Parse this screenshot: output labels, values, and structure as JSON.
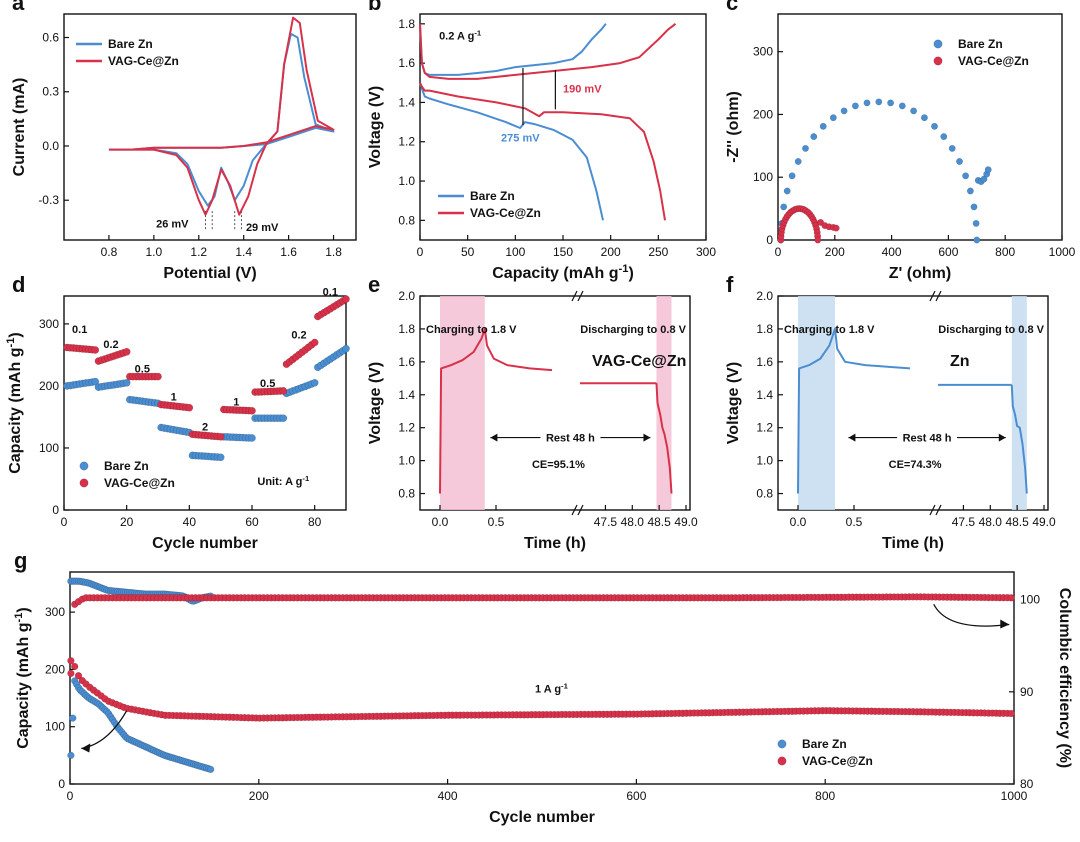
{
  "colors": {
    "bare": "#4a8ed1",
    "vag": "#d8314a",
    "pink": "#f4bfd3",
    "blue": "#c4dcf0"
  },
  "chart_data": [
    {
      "id": "a",
      "type": "line",
      "panel_label": "a",
      "xlabel": "Potential (V)",
      "ylabel": "Current (mA)",
      "xlim": [
        0.6,
        1.9
      ],
      "ylim": [
        -0.52,
        0.73
      ],
      "xticks": [
        "0.8",
        "1.0",
        "1.2",
        "1.4",
        "1.6",
        "1.8"
      ],
      "yticks": [
        "-0.3",
        "0.0",
        "0.3",
        "0.6"
      ],
      "series": [
        {
          "name": "Bare Zn",
          "color_key": "bare",
          "x": [
            0.8,
            0.9,
            1.0,
            1.1,
            1.15,
            1.2,
            1.24,
            1.27,
            1.3,
            1.33,
            1.36,
            1.4,
            1.44,
            1.5,
            1.55,
            1.58,
            1.61,
            1.64,
            1.67,
            1.72,
            1.8,
            1.72,
            1.6,
            1.5,
            1.4,
            1.3,
            1.2,
            1.1,
            1.0,
            0.9,
            0.8
          ],
          "y": [
            -0.02,
            -0.02,
            -0.02,
            -0.04,
            -0.1,
            -0.25,
            -0.33,
            -0.28,
            -0.12,
            -0.2,
            -0.3,
            -0.22,
            -0.08,
            0.01,
            0.08,
            0.45,
            0.62,
            0.6,
            0.38,
            0.12,
            0.08,
            0.1,
            0.05,
            0.01,
            0.0,
            -0.01,
            -0.01,
            -0.01,
            -0.01,
            -0.02,
            -0.02
          ]
        },
        {
          "name": "VAG-Ce@Zn",
          "color_key": "vag",
          "x": [
            0.8,
            0.9,
            1.0,
            1.1,
            1.15,
            1.2,
            1.23,
            1.26,
            1.3,
            1.34,
            1.38,
            1.42,
            1.46,
            1.5,
            1.55,
            1.58,
            1.62,
            1.65,
            1.68,
            1.73,
            1.8,
            1.72,
            1.6,
            1.5,
            1.4,
            1.3,
            1.2,
            1.1,
            1.0,
            0.9,
            0.8
          ],
          "y": [
            -0.02,
            -0.02,
            -0.02,
            -0.05,
            -0.12,
            -0.3,
            -0.38,
            -0.3,
            -0.13,
            -0.22,
            -0.38,
            -0.28,
            -0.1,
            0.01,
            0.08,
            0.45,
            0.71,
            0.68,
            0.42,
            0.14,
            0.09,
            0.11,
            0.06,
            0.02,
            0.0,
            -0.01,
            -0.01,
            -0.01,
            -0.01,
            -0.02,
            -0.02
          ]
        }
      ],
      "legend": [
        "Bare Zn",
        "VAG-Ce@Zn"
      ],
      "annotations": [
        "26 mV",
        "29 mV"
      ]
    },
    {
      "id": "b",
      "type": "line",
      "panel_label": "b",
      "xlabel": "Capacity (mAh g-1)",
      "ylabel": "Voltage (V)",
      "xlim": [
        0,
        300
      ],
      "ylim": [
        0.7,
        1.85
      ],
      "xticks": [
        "0",
        "50",
        "100",
        "150",
        "200",
        "250",
        "300"
      ],
      "yticks": [
        "0.8",
        "1.0",
        "1.2",
        "1.4",
        "1.6",
        "1.8"
      ],
      "series": [
        {
          "name": "Bare Zn charge",
          "color_key": "bare",
          "x": [
            0,
            2,
            5,
            10,
            20,
            40,
            60,
            80,
            100,
            120,
            140,
            160,
            170,
            180,
            190,
            195
          ],
          "y": [
            1.8,
            1.6,
            1.55,
            1.54,
            1.54,
            1.54,
            1.55,
            1.56,
            1.58,
            1.59,
            1.6,
            1.62,
            1.66,
            1.72,
            1.77,
            1.8
          ]
        },
        {
          "name": "Bare Zn discharge",
          "color_key": "bare",
          "x": [
            0,
            2,
            5,
            10,
            30,
            60,
            90,
            105,
            110,
            120,
            140,
            160,
            175,
            185,
            192
          ],
          "y": [
            1.5,
            1.47,
            1.43,
            1.42,
            1.39,
            1.35,
            1.3,
            1.27,
            1.3,
            1.29,
            1.26,
            1.21,
            1.12,
            0.95,
            0.8
          ]
        },
        {
          "name": "VAG-Ce@Zn charge",
          "color_key": "vag",
          "x": [
            0,
            2,
            5,
            10,
            30,
            60,
            100,
            140,
            180,
            210,
            230,
            250,
            260,
            268
          ],
          "y": [
            1.8,
            1.6,
            1.55,
            1.53,
            1.52,
            1.52,
            1.54,
            1.56,
            1.58,
            1.6,
            1.63,
            1.72,
            1.77,
            1.8
          ]
        },
        {
          "name": "VAG-Ce@Zn discharge",
          "color_key": "vag",
          "x": [
            0,
            2,
            5,
            10,
            40,
            80,
            110,
            125,
            130,
            150,
            190,
            220,
            235,
            245,
            252,
            257
          ],
          "y": [
            1.5,
            1.48,
            1.46,
            1.46,
            1.43,
            1.4,
            1.37,
            1.33,
            1.35,
            1.35,
            1.34,
            1.32,
            1.25,
            1.1,
            0.95,
            0.8
          ]
        }
      ],
      "legend": [
        "Bare Zn",
        "VAG-Ce@Zn"
      ],
      "annotations": [
        "0.2 A g-1",
        "190 mV",
        "275 mV"
      ]
    },
    {
      "id": "c",
      "type": "scatter",
      "panel_label": "c",
      "xlabel": "Z' (ohm)",
      "ylabel": "-Z'' (ohm)",
      "xlim": [
        0,
        1000
      ],
      "ylim": [
        0,
        360
      ],
      "xticks": [
        "0",
        "200",
        "400",
        "600",
        "800",
        "1000"
      ],
      "yticks": [
        "0",
        "100",
        "200",
        "300"
      ],
      "series": [
        {
          "name": "Bare Zn",
          "color_key": "bare",
          "shape": "semicircle",
          "x_start": 10,
          "x_end": 700,
          "y_peak": 220,
          "tail": [
            [
              705,
              95
            ],
            [
              715,
              93
            ],
            [
              725,
              97
            ],
            [
              735,
              105
            ],
            [
              740,
              112
            ]
          ]
        },
        {
          "name": "VAG-Ce@Zn",
          "color_key": "vag",
          "shape": "semicircle",
          "x_start": 10,
          "x_end": 140,
          "y_peak": 50,
          "tail": [
            [
              150,
              28
            ],
            [
              165,
              23
            ],
            [
              180,
              21
            ],
            [
              195,
              20
            ],
            [
              205,
              19
            ]
          ]
        }
      ],
      "legend": [
        "Bare Zn",
        "VAG-Ce@Zn"
      ]
    },
    {
      "id": "d",
      "type": "scatter",
      "panel_label": "d",
      "xlabel": "Cycle number",
      "ylabel": "Capacity (mAh g-1)",
      "xlim": [
        0,
        90
      ],
      "ylim": [
        0,
        345
      ],
      "xticks": [
        "0",
        "20",
        "40",
        "60",
        "80"
      ],
      "yticks": [
        "0",
        "100",
        "200",
        "300"
      ],
      "series": [
        {
          "name": "Bare Zn",
          "color_key": "bare",
          "segments": [
            [
              1,
              10,
              200,
              207
            ],
            [
              11,
              20,
              198,
              205
            ],
            [
              21,
              30,
              178,
              172
            ],
            [
              31,
              40,
              133,
              125
            ],
            [
              41,
              50,
              88,
              85
            ],
            [
              51,
              60,
              118,
              116
            ],
            [
              61,
              70,
              148,
              148
            ],
            [
              71,
              80,
              188,
              205
            ],
            [
              81,
              90,
              230,
              260
            ]
          ]
        },
        {
          "name": "VAG-Ce@Zn",
          "color_key": "vag",
          "segments": [
            [
              1,
              10,
              262,
              258
            ],
            [
              11,
              20,
              240,
              255
            ],
            [
              21,
              30,
              215,
              215
            ],
            [
              31,
              40,
              170,
              165
            ],
            [
              41,
              50,
              122,
              118
            ],
            [
              51,
              60,
              162,
              160
            ],
            [
              61,
              70,
              190,
              192
            ],
            [
              71,
              80,
              235,
              270
            ],
            [
              81,
              90,
              312,
              340
            ]
          ]
        }
      ],
      "rate_labels": [
        "0.1",
        "0.2",
        "0.5",
        "1",
        "2",
        "1",
        "0.5",
        "0.2",
        "0.1"
      ],
      "legend": [
        "Bare Zn",
        "VAG-Ce@Zn"
      ],
      "annotations": [
        "Unit: A g-1"
      ]
    },
    {
      "id": "e",
      "type": "line",
      "panel_label": "e",
      "xlabel": "Time (h)",
      "ylabel": "Voltage (V)",
      "ylim": [
        0.7,
        2.0
      ],
      "yticks": [
        "0.8",
        "1.0",
        "1.2",
        "1.4",
        "1.6",
        "1.8",
        "2.0"
      ],
      "xticks": [
        "0.0",
        "0.5",
        "47.5",
        "48.0",
        "48.5",
        "49.0"
      ],
      "series": [
        {
          "name": "VAG-Ce@Zn",
          "color_key": "vag",
          "charge": [
            [
              0,
              0.8
            ],
            [
              0.01,
              1.56
            ],
            [
              0.1,
              1.58
            ],
            [
              0.2,
              1.61
            ],
            [
              0.3,
              1.66
            ],
            [
              0.37,
              1.74
            ],
            [
              0.4,
              1.8
            ],
            [
              0.42,
              1.7
            ],
            [
              0.48,
              1.62
            ],
            [
              0.6,
              1.58
            ],
            [
              0.8,
              1.56
            ],
            [
              1.0,
              1.55
            ]
          ],
          "rest_v": 1.47,
          "discharge": [
            [
              48.45,
              1.47
            ],
            [
              48.47,
              1.35
            ],
            [
              48.52,
              1.28
            ],
            [
              48.56,
              1.2
            ],
            [
              48.6,
              1.16
            ],
            [
              48.65,
              1.08
            ],
            [
              48.7,
              0.95
            ],
            [
              48.73,
              0.8
            ]
          ]
        }
      ],
      "highlight_key": "pink",
      "annotations": [
        "Charging to 1.8 V",
        "Discharging to 0.8 V",
        "VAG-Ce@Zn",
        "Rest 48 h",
        "CE=95.1%"
      ]
    },
    {
      "id": "f",
      "type": "line",
      "panel_label": "f",
      "xlabel": "Time (h)",
      "ylabel": "Voltage (V)",
      "ylim": [
        0.7,
        2.0
      ],
      "yticks": [
        "0.8",
        "1.0",
        "1.2",
        "1.4",
        "1.6",
        "1.8",
        "2.0"
      ],
      "xticks": [
        "0.0",
        "0.5",
        "47.5",
        "48.0",
        "48.5",
        "49.0"
      ],
      "series": [
        {
          "name": "Zn",
          "color_key": "bare",
          "charge": [
            [
              0,
              0.8
            ],
            [
              0.01,
              1.56
            ],
            [
              0.1,
              1.58
            ],
            [
              0.2,
              1.62
            ],
            [
              0.28,
              1.7
            ],
            [
              0.33,
              1.8
            ],
            [
              0.35,
              1.68
            ],
            [
              0.42,
              1.6
            ],
            [
              0.6,
              1.58
            ],
            [
              0.8,
              1.57
            ],
            [
              1.0,
              1.56
            ]
          ],
          "rest_v": 1.46,
          "discharge": [
            [
              48.4,
              1.46
            ],
            [
              48.42,
              1.33
            ],
            [
              48.46,
              1.28
            ],
            [
              48.5,
              1.21
            ],
            [
              48.55,
              1.2
            ],
            [
              48.6,
              1.1
            ],
            [
              48.65,
              0.95
            ],
            [
              48.68,
              0.8
            ]
          ]
        }
      ],
      "highlight_key": "blue",
      "annotations": [
        "Charging to 1.8 V",
        "Discharging to 0.8 V",
        "Zn",
        "Rest 48 h",
        "CE=74.3%"
      ]
    },
    {
      "id": "g",
      "type": "scatter",
      "panel_label": "g",
      "xlabel": "Cycle number",
      "ylabel": "Capacity (mAh g-1)",
      "ylabel_right": "Columbic efficiency (%)",
      "xlim": [
        0,
        1000
      ],
      "ylim": [
        0,
        370
      ],
      "ylim_right": [
        80,
        103
      ],
      "xticks": [
        "0",
        "200",
        "400",
        "600",
        "800",
        "1000"
      ],
      "yticks": [
        "0",
        "100",
        "200",
        "300"
      ],
      "yticks_right": [
        "80",
        "90",
        "100"
      ],
      "series": [
        {
          "name": "Bare Zn capacity",
          "color_key": "bare",
          "axis": "left",
          "x": [
            1,
            5,
            10,
            20,
            30,
            40,
            50,
            60,
            80,
            100,
            120,
            140,
            150
          ],
          "y": [
            50,
            180,
            165,
            150,
            140,
            125,
            100,
            80,
            65,
            50,
            40,
            30,
            25
          ]
        },
        {
          "name": "VAG-Ce@Zn capacity",
          "color_key": "vag",
          "axis": "left",
          "x": [
            1,
            5,
            10,
            20,
            40,
            60,
            100,
            200,
            400,
            600,
            800,
            900,
            1000
          ],
          "y": [
            215,
            205,
            185,
            170,
            145,
            132,
            120,
            115,
            120,
            122,
            128,
            126,
            123
          ]
        },
        {
          "name": "Bare Zn CE",
          "color_key": "bare",
          "axis": "right",
          "x": [
            1,
            10,
            20,
            40,
            60,
            80,
            100,
            120,
            130,
            140,
            150
          ],
          "y": [
            102,
            102,
            101.8,
            101,
            100.8,
            100.6,
            100.6,
            100.4,
            99.8,
            100.2,
            100.4
          ]
        },
        {
          "name": "VAG-Ce@Zn CE",
          "color_key": "vag",
          "axis": "right",
          "x": [
            1,
            5,
            15,
            30,
            100,
            300,
            500,
            700,
            900,
            1000
          ],
          "y": [
            92,
            99.5,
            100.2,
            100.2,
            100.2,
            100.2,
            100.2,
            100.2,
            100.3,
            100.2
          ]
        }
      ],
      "legend": [
        "Bare Zn",
        "VAG-Ce@Zn"
      ],
      "annotations": [
        "1 A g-1"
      ]
    }
  ]
}
